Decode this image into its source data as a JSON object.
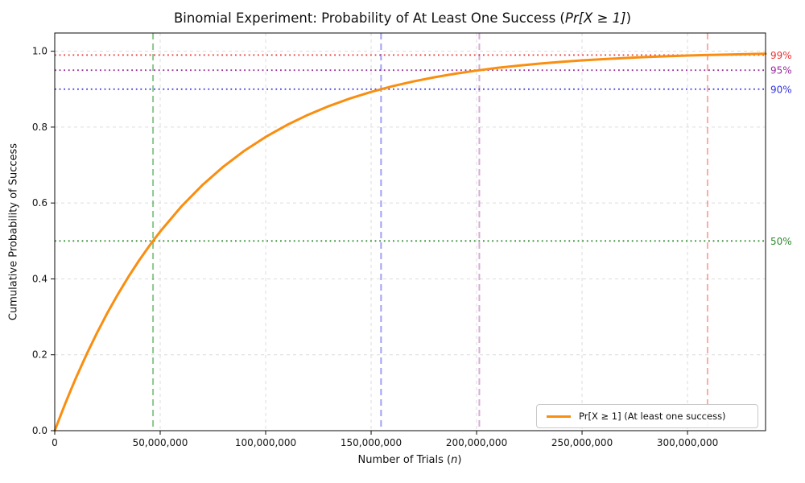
{
  "title": {
    "prefix": "Binomial Experiment: Probability of At Least One Success (",
    "math": "Pr[X ≥ 1]",
    "suffix": ")"
  },
  "axes_labels": {
    "x_prefix": "Number of Trials (",
    "x_italic": "n",
    "x_suffix": ")"
  },
  "colors": {
    "curve": "#f98e10",
    "grid": "#dcdcdc",
    "spine": "#0a0a0a",
    "tick_text": "#151515",
    "background": "#ffffff"
  },
  "chart_data": {
    "type": "line",
    "title": "Binomial Experiment: Probability of At Least One Success (Pr[X ≥ 1])",
    "xlabel": "Number of Trials (n)",
    "ylabel": "Cumulative Probability of Success",
    "xlim": [
      0,
      337000000
    ],
    "ylim": [
      0,
      1.048
    ],
    "grid": true,
    "x_ticks": [
      {
        "value": 0,
        "label": "0"
      },
      {
        "value": 50000000,
        "label": "50,000,000"
      },
      {
        "value": 100000000,
        "label": "100,000,000"
      },
      {
        "value": 150000000,
        "label": "150,000,000"
      },
      {
        "value": 200000000,
        "label": "200,000,000"
      },
      {
        "value": 250000000,
        "label": "250,000,000"
      },
      {
        "value": 300000000,
        "label": "300,000,000"
      }
    ],
    "y_ticks": [
      {
        "value": 0.0,
        "label": "0.0"
      },
      {
        "value": 0.2,
        "label": "0.2"
      },
      {
        "value": 0.4,
        "label": "0.4"
      },
      {
        "value": 0.6,
        "label": "0.6"
      },
      {
        "value": 0.8,
        "label": "0.8"
      },
      {
        "value": 1.0,
        "label": "1.0"
      }
    ],
    "legend": {
      "position": "lower right",
      "entries": [
        {
          "label": "Pr[X ≥ 1] (At least one success)",
          "color": "#f98e10"
        }
      ]
    },
    "series": [
      {
        "name": "Pr[X ≥ 1] (At least one success)",
        "color": "#f98e10",
        "x": [
          0,
          2500000,
          5000000,
          7500000,
          10000000,
          15000000,
          20000000,
          25000000,
          30000000,
          35000000,
          40000000,
          45000000,
          50000000,
          60000000,
          70000000,
          80000000,
          90000000,
          100000000,
          110000000,
          120000000,
          130000000,
          140000000,
          150000000,
          160000000,
          170000000,
          180000000,
          190000000,
          200000000,
          210000000,
          220000000,
          230000000,
          240000000,
          250000000,
          260000000,
          270000000,
          280000000,
          290000000,
          300000000,
          310000000,
          320000000,
          330000000,
          337000000
        ],
        "y": [
          0,
          0.0365,
          0.0717,
          0.1056,
          0.1383,
          0.2,
          0.2574,
          0.3107,
          0.3601,
          0.406,
          0.4486,
          0.4881,
          0.5249,
          0.5906,
          0.6472,
          0.696,
          0.738,
          0.7742,
          0.8054,
          0.8323,
          0.8554,
          0.8755,
          0.8927,
          0.9076,
          0.9203,
          0.9313,
          0.9409,
          0.949,
          0.9561,
          0.9621,
          0.9674,
          0.9719,
          0.9758,
          0.9791,
          0.982,
          0.9845,
          0.9866,
          0.9885,
          0.9901,
          0.9914,
          0.9927,
          0.9934
        ]
      }
    ],
    "h_reference_lines": [
      {
        "value": 0.99,
        "label": "99%",
        "color": "#f03030",
        "style": "dotted"
      },
      {
        "value": 0.95,
        "label": "95%",
        "color": "#9b2d9b",
        "style": "dotted"
      },
      {
        "value": 0.9,
        "label": "90%",
        "color": "#3434e0",
        "style": "dotted"
      },
      {
        "value": 0.5,
        "label": "50%",
        "color": "#2e8b2e",
        "style": "dotted"
      }
    ],
    "v_reference_lines": [
      {
        "value": 46600000,
        "threshold": 0.5,
        "color": "rgba(0,128,0,0.45)",
        "style": "dashed"
      },
      {
        "value": 154700000,
        "threshold": 0.9,
        "color": "rgba(30,30,235,0.42)",
        "style": "dashed"
      },
      {
        "value": 201300000,
        "threshold": 0.95,
        "color": "rgba(140,20,140,0.35)",
        "style": "dashed"
      },
      {
        "value": 309500000,
        "threshold": 0.99,
        "color": "rgba(250,30,30,0.38)",
        "style": "dashed"
      }
    ]
  }
}
